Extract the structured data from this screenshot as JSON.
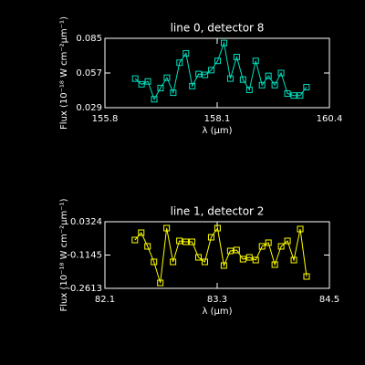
{
  "chart_data": [
    {
      "type": "line",
      "title": "line 0, detector 8",
      "xlabel": "λ (μm)",
      "ylabel": "Flux (10⁻¹⁸ W cm⁻²μm⁻¹)",
      "marker": "square",
      "x": [
        156.42,
        156.55,
        156.68,
        156.81,
        156.94,
        157.07,
        157.2,
        157.33,
        157.46,
        157.59,
        157.72,
        157.85,
        157.98,
        158.11,
        158.24,
        158.37,
        158.5,
        158.63,
        158.76,
        158.89,
        159.02,
        159.15,
        159.28,
        159.41,
        159.54,
        159.67,
        159.8,
        159.93
      ],
      "series": [
        {
          "color": "#00e0c0",
          "values": [
            0.0525,
            0.0479,
            0.0502,
            0.0358,
            0.0449,
            0.0532,
            0.0411,
            0.0653,
            0.0729,
            0.0464,
            0.0562,
            0.0555,
            0.0593,
            0.0668,
            0.0812,
            0.0525,
            0.0699,
            0.0517,
            0.0434,
            0.0668,
            0.0472,
            0.0547,
            0.0472,
            0.057,
            0.0404,
            0.0388,
            0.0388,
            0.0456
          ]
        }
      ],
      "xlim": [
        155.8,
        160.4
      ],
      "xticks": [
        155.8,
        158.1,
        160.4
      ],
      "ylim": [
        0.029,
        0.085
      ],
      "yticks": [
        0.029,
        0.057,
        0.085
      ]
    },
    {
      "type": "line",
      "title": "line 1, detector 2",
      "xlabel": "λ (μm)",
      "ylabel": "Flux (10⁻¹⁸ W cm⁻²μm⁻¹)",
      "marker": "square",
      "x": [
        82.42,
        82.488,
        82.556,
        82.624,
        82.692,
        82.76,
        82.828,
        82.896,
        82.964,
        83.032,
        83.1,
        83.168,
        83.236,
        83.304,
        83.372,
        83.44,
        83.508,
        83.576,
        83.644,
        83.712,
        83.78,
        83.848,
        83.916,
        83.984,
        84.052,
        84.12,
        84.188,
        84.256
      ],
      "series": [
        {
          "color": "#ffff00",
          "values": [
            -0.0481,
            -0.0159,
            -0.0762,
            -0.1446,
            -0.2372,
            0.0042,
            -0.1446,
            -0.0521,
            -0.0561,
            -0.0561,
            -0.1245,
            -0.1446,
            -0.036,
            0.0042,
            -0.1607,
            -0.0964,
            -0.0923,
            -0.1326,
            -0.1245,
            -0.1366,
            -0.0762,
            -0.0601,
            -0.1567,
            -0.0762,
            -0.0521,
            -0.1366,
            0.0002,
            -0.209
          ]
        }
      ],
      "xlim": [
        82.1,
        84.5
      ],
      "xticks": [
        82.1,
        83.3,
        84.5
      ],
      "ylim": [
        -0.2613,
        0.0324
      ],
      "yticks": [
        -0.2613,
        -0.1145,
        0.0324
      ]
    }
  ]
}
